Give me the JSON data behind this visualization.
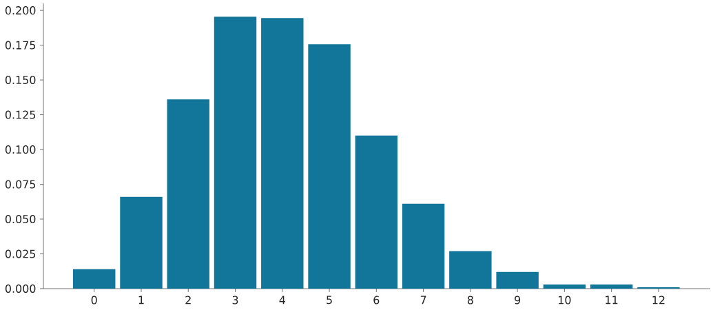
{
  "chart_data": {
    "type": "bar",
    "categories": [
      "0",
      "1",
      "2",
      "3",
      "4",
      "5",
      "6",
      "7",
      "8",
      "9",
      "10",
      "11",
      "12"
    ],
    "values": [
      0.014,
      0.066,
      0.136,
      0.1955,
      0.1945,
      0.1757,
      0.11,
      0.061,
      0.027,
      0.012,
      0.003,
      0.003,
      0.001
    ],
    "color": "#11769a",
    "ylim": [
      0,
      0.205
    ],
    "yticks": [
      {
        "value": 0,
        "label": "0.000"
      },
      {
        "value": 0.025,
        "label": "0.025"
      },
      {
        "value": 0.05,
        "label": "0.050"
      },
      {
        "value": 0.075,
        "label": "0.075"
      },
      {
        "value": 0.1,
        "label": "0.100"
      },
      {
        "value": 0.125,
        "label": "0.125"
      },
      {
        "value": 0.15,
        "label": "0.150"
      },
      {
        "value": 0.175,
        "label": "0.175"
      },
      {
        "value": 0.2,
        "label": "0.200"
      }
    ],
    "grid": false
  }
}
